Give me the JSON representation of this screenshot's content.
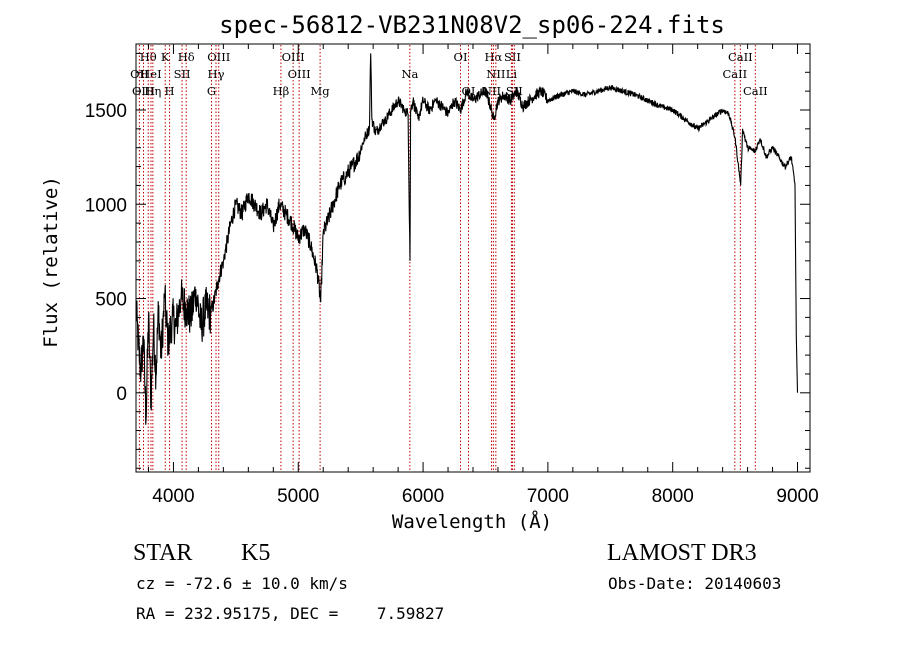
{
  "chart_data": {
    "type": "line",
    "title": "spec-56812-VB231N08V2_sp06-224.fits",
    "xlabel": "Wavelength (Å)",
    "ylabel": "Flux (relative)",
    "xlim": [
      3700,
      9100
    ],
    "ylim": [
      -420,
      1850
    ],
    "xticks": [
      4000,
      5000,
      6000,
      7000,
      8000,
      9000
    ],
    "yticks": [
      0,
      500,
      1000,
      1500
    ],
    "xtick_labels": [
      "4000",
      "5000",
      "6000",
      "7000",
      "8000",
      "9000"
    ],
    "ytick_labels": [
      "0",
      "500",
      "1000",
      "1500"
    ],
    "series": [
      {
        "name": "flux",
        "x": [
          3700,
          3720,
          3740,
          3760,
          3780,
          3800,
          3820,
          3840,
          3860,
          3880,
          3900,
          3930,
          3960,
          3990,
          4020,
          4060,
          4100,
          4140,
          4180,
          4220,
          4260,
          4300,
          4330,
          4360,
          4400,
          4430,
          4460,
          4500,
          4550,
          4600,
          4650,
          4700,
          4750,
          4800,
          4850,
          4900,
          4950,
          5000,
          5050,
          5100,
          5150,
          5180,
          5200,
          5230,
          5280,
          5330,
          5380,
          5430,
          5480,
          5530,
          5570,
          5580,
          5590,
          5620,
          5660,
          5700,
          5750,
          5800,
          5850,
          5880,
          5895,
          5900,
          5920,
          5960,
          6000,
          6050,
          6100,
          6150,
          6200,
          6250,
          6300,
          6350,
          6400,
          6450,
          6500,
          6550,
          6565,
          6600,
          6650,
          6700,
          6750,
          6800,
          6850,
          6900,
          6950,
          7000,
          7100,
          7200,
          7300,
          7400,
          7500,
          7600,
          7700,
          7800,
          7900,
          8000,
          8100,
          8200,
          8300,
          8400,
          8450,
          8500,
          8545,
          8560,
          8600,
          8660,
          8700,
          8750,
          8800,
          8850,
          8900,
          8950,
          8980,
          8990,
          9000
        ],
        "y": [
          450,
          250,
          100,
          300,
          -150,
          400,
          -50,
          350,
          100,
          450,
          200,
          500,
          250,
          400,
          350,
          500,
          450,
          400,
          550,
          350,
          450,
          420,
          500,
          600,
          700,
          800,
          900,
          1000,
          950,
          1050,
          1000,
          950,
          1000,
          880,
          1000,
          950,
          900,
          820,
          870,
          780,
          650,
          480,
          850,
          900,
          1000,
          1100,
          1150,
          1200,
          1250,
          1350,
          1400,
          1800,
          1450,
          1380,
          1420,
          1450,
          1500,
          1550,
          1500,
          1480,
          700,
          1500,
          1550,
          1450,
          1550,
          1500,
          1550,
          1520,
          1480,
          1550,
          1500,
          1600,
          1550,
          1580,
          1600,
          1500,
          1450,
          1550,
          1580,
          1550,
          1600,
          1520,
          1550,
          1580,
          1600,
          1550,
          1580,
          1600,
          1580,
          1600,
          1620,
          1600,
          1580,
          1550,
          1520,
          1500,
          1450,
          1400,
          1450,
          1500,
          1480,
          1350,
          1100,
          1400,
          1300,
          1280,
          1350,
          1250,
          1300,
          1250,
          1200,
          1250,
          1100,
          300,
          0
        ]
      }
    ],
    "lines": [
      {
        "label": "Hθ",
        "x": 3798,
        "row": 1
      },
      {
        "label": "OII",
        "x": 3727,
        "row": 2
      },
      {
        "label": "OIII",
        "x": 3760,
        "row": 3
      },
      {
        "label": "HeI",
        "x": 3820,
        "row": 2
      },
      {
        "label": "Hη",
        "x": 3835,
        "row": 3
      },
      {
        "label": "K",
        "x": 3934,
        "row": 1
      },
      {
        "label": "SII",
        "x": 4069,
        "row": 2
      },
      {
        "label": "H",
        "x": 3969,
        "row": 3
      },
      {
        "label": "Hδ",
        "x": 4102,
        "row": 1
      },
      {
        "label": "OIII",
        "x": 4363,
        "row": 1
      },
      {
        "label": "Hγ",
        "x": 4341,
        "row": 2
      },
      {
        "label": "G",
        "x": 4305,
        "row": 3
      },
      {
        "label": "OIII",
        "x": 4959,
        "row": 1
      },
      {
        "label": "OIII",
        "x": 5007,
        "row": 2
      },
      {
        "label": "Hβ",
        "x": 4861,
        "row": 3
      },
      {
        "label": "Mg",
        "x": 5175,
        "row": 3
      },
      {
        "label": "Na",
        "x": 5894,
        "row": 2
      },
      {
        "label": "OI",
        "x": 6300,
        "row": 1
      },
      {
        "label": "OI",
        "x": 6364,
        "row": 3
      },
      {
        "label": "Hα",
        "x": 6563,
        "row": 1
      },
      {
        "label": "SII",
        "x": 6716,
        "row": 1
      },
      {
        "label": "NII",
        "x": 6583,
        "row": 2
      },
      {
        "label": "Li",
        "x": 6708,
        "row": 2
      },
      {
        "label": "NII",
        "x": 6548,
        "row": 3
      },
      {
        "label": "SII",
        "x": 6731,
        "row": 3
      },
      {
        "label": "CaII",
        "x": 8542,
        "row": 1
      },
      {
        "label": "CaII",
        "x": 8498,
        "row": 2
      },
      {
        "label": "CaII",
        "x": 8662,
        "row": 3
      }
    ]
  },
  "info": {
    "class_label": "STAR",
    "subclass": "K5",
    "survey": "LAMOST DR3",
    "velocity": "cz = -72.6 ± 10.0 km/s",
    "obs_date": "Obs-Date: 20140603",
    "coords": "RA = 232.95175, DEC =    7.59827"
  }
}
